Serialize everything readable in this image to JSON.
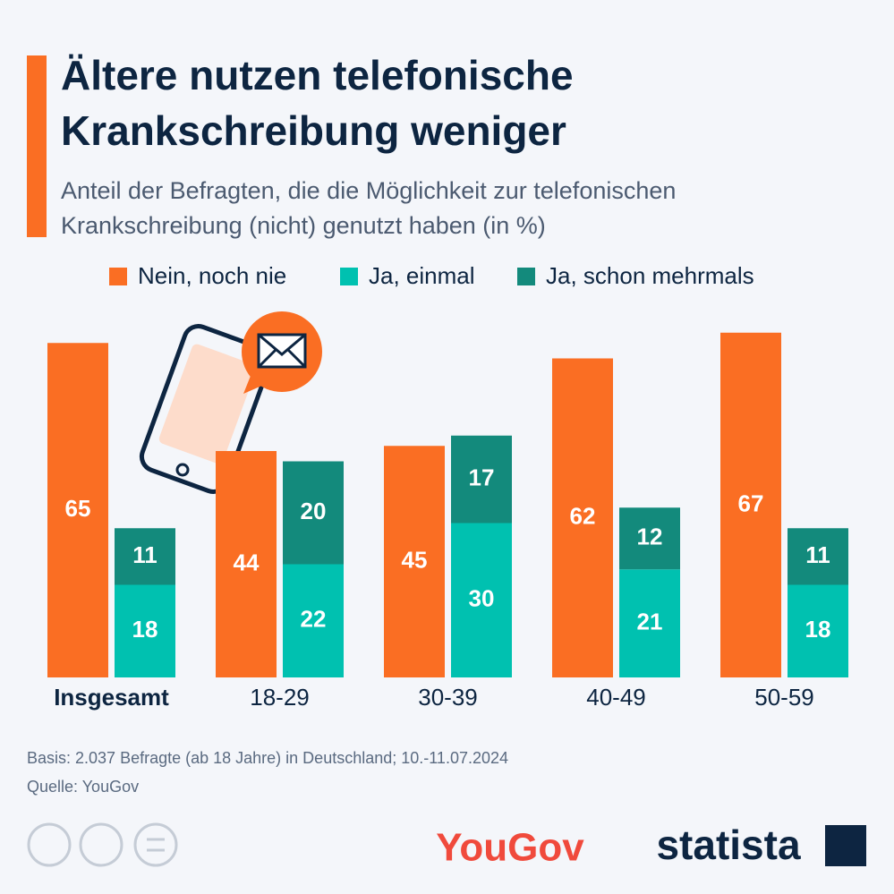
{
  "chart_data": {
    "type": "bar",
    "title": [
      "Ältere nutzen telefonische",
      "Krankschreibung weniger"
    ],
    "subtitle": [
      "Anteil der Befragten, die die Möglichkeit zur telefonischen",
      "Krankschreibung (nicht) genutzt haben (in %)"
    ],
    "categories": [
      "Insgesamt",
      "18-29",
      "30-39",
      "40-49",
      "50-59"
    ],
    "series": [
      {
        "name": "Nein, noch nie",
        "color": "#fa6e23",
        "values": [
          65,
          44,
          45,
          62,
          67
        ]
      },
      {
        "name": "Ja, einmal",
        "color": "#00c1b0",
        "values": [
          18,
          22,
          30,
          21,
          18
        ]
      },
      {
        "name": "Ja, schon mehrmals",
        "color": "#138a7c",
        "values": [
          11,
          20,
          17,
          12,
          11
        ]
      }
    ],
    "footer": [
      "Basis: 2.037 Befragte (ab 18 Jahre) in Deutschland; 10.-11.07.2024",
      "Quelle: YouGov"
    ],
    "logos": [
      "YouGov",
      "statista"
    ]
  }
}
